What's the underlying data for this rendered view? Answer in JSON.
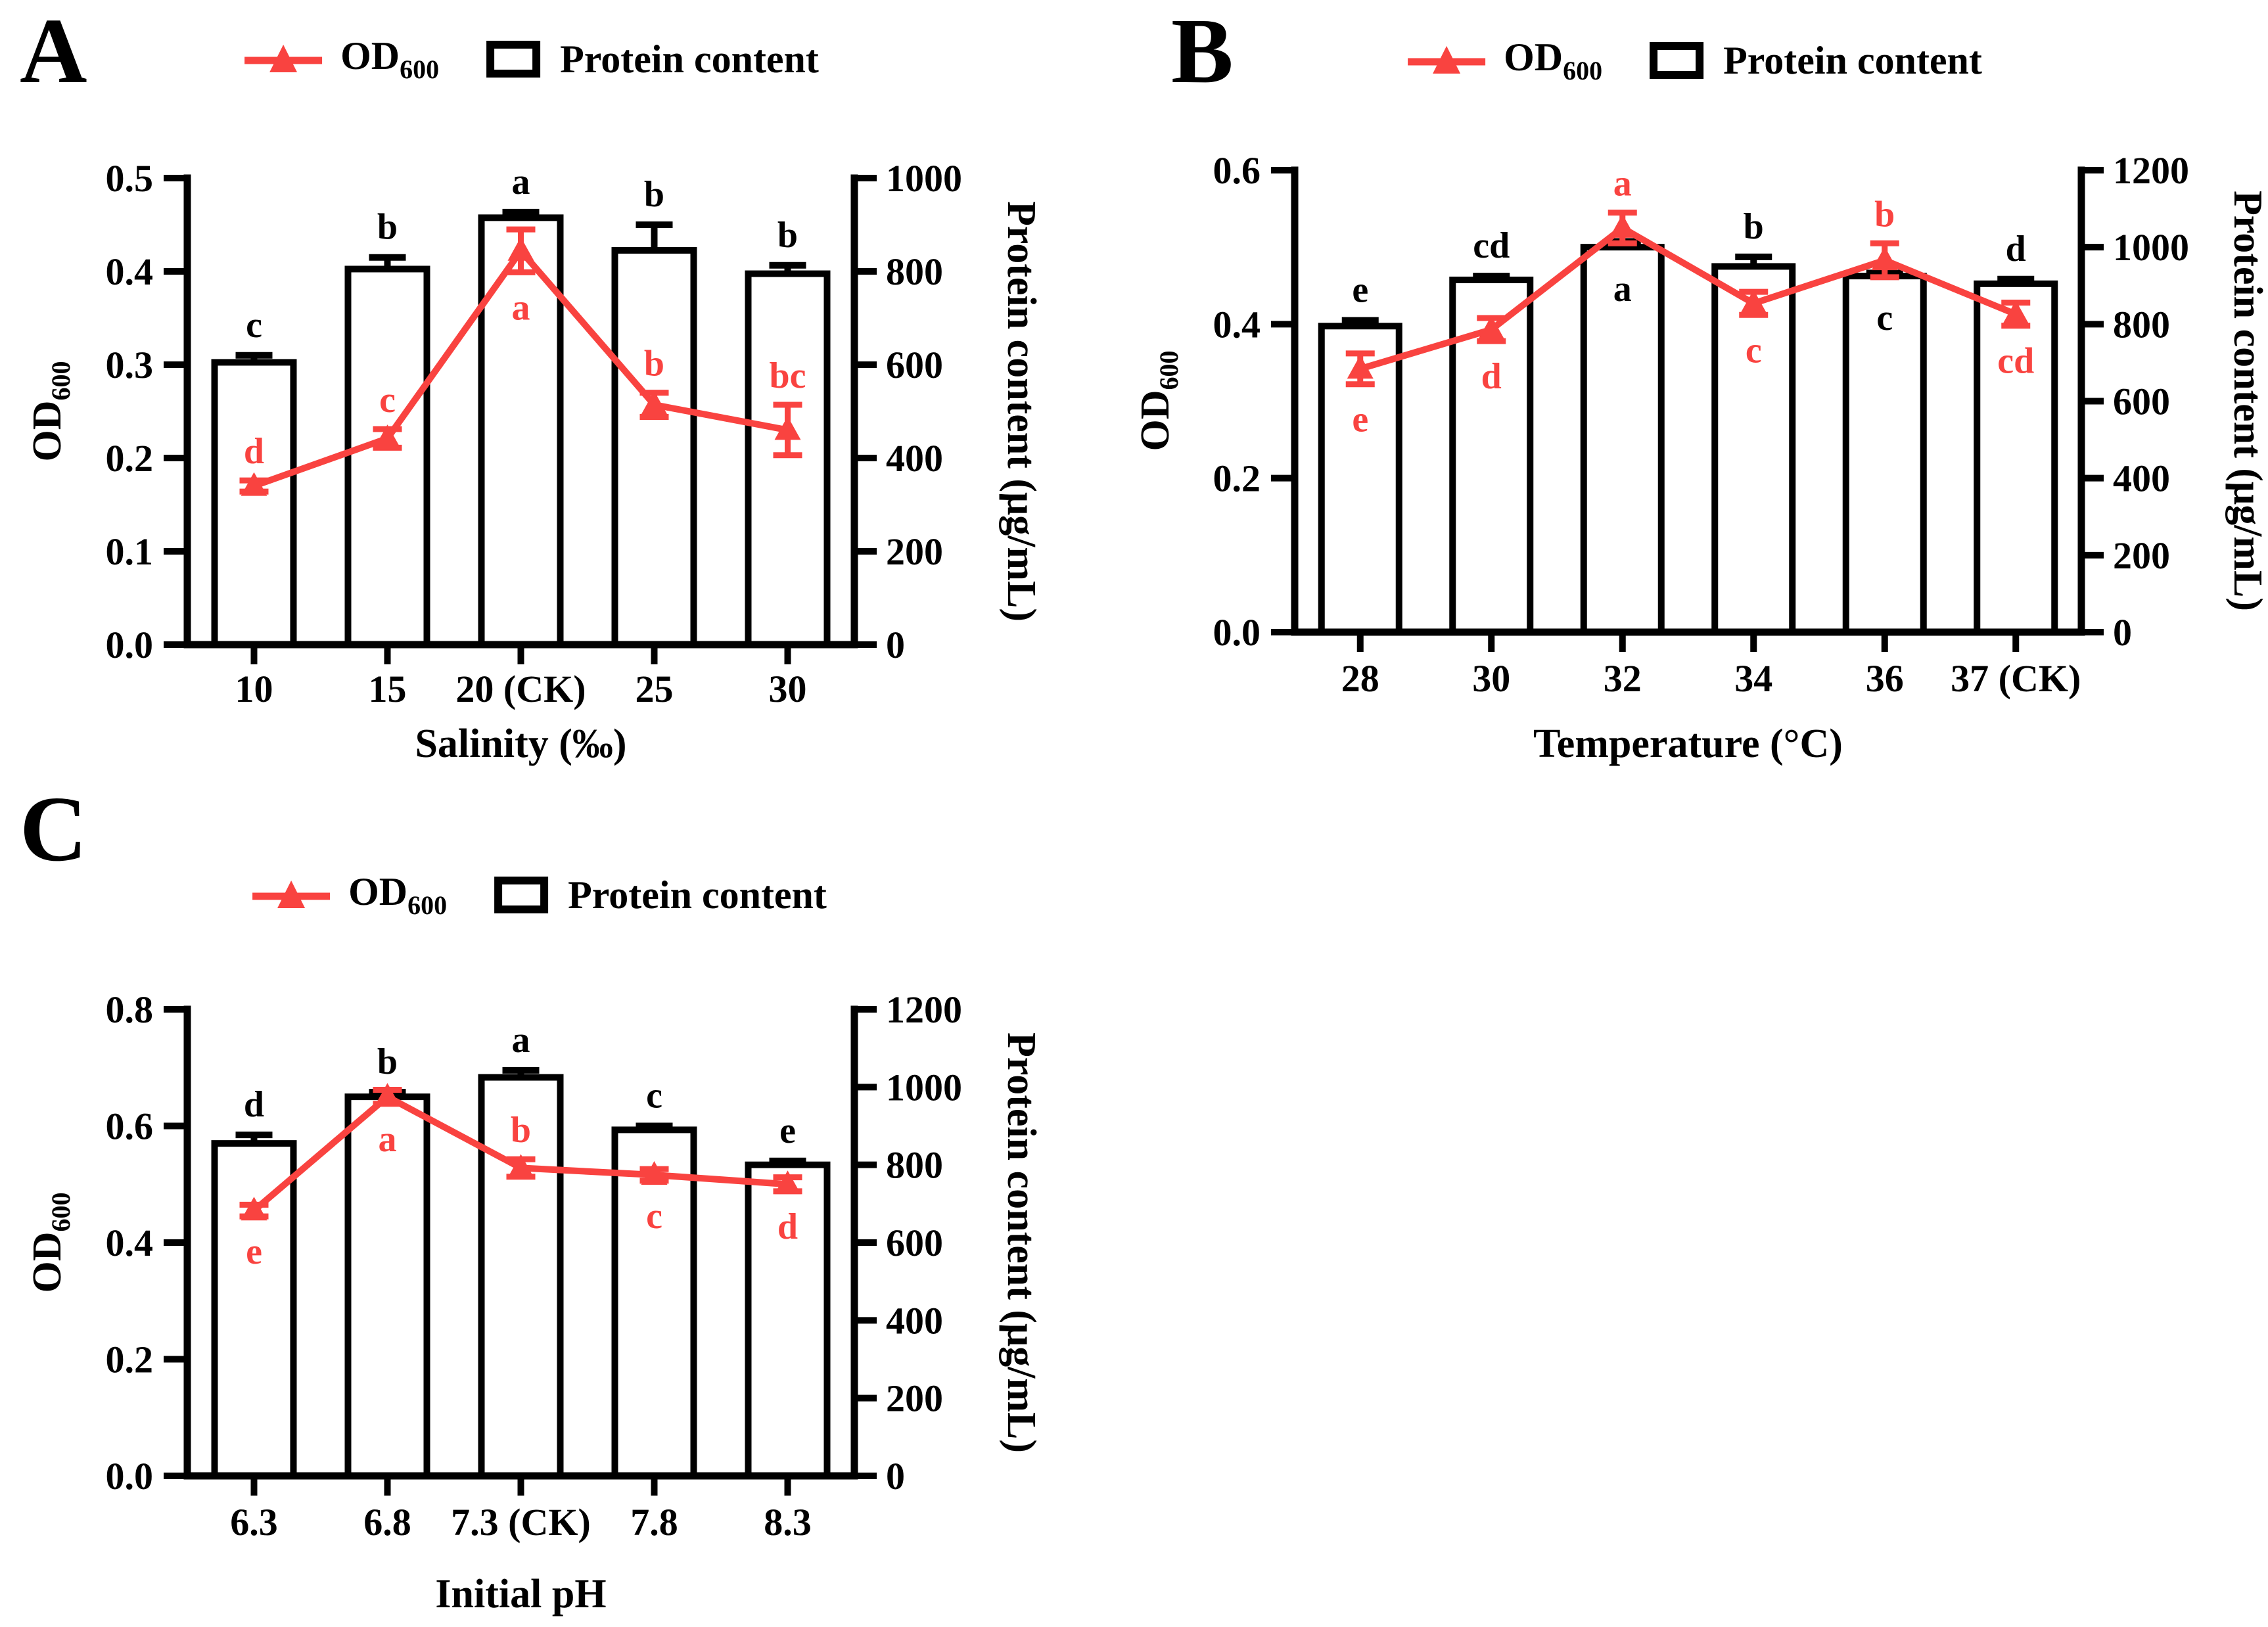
{
  "colors": {
    "red": "#F94340",
    "black": "#000000",
    "bar_fill": "#FFFFFF",
    "background": "#FFFFFF"
  },
  "legend": {
    "od_main": "OD",
    "od_sub": "600",
    "protein_label": "Protein content"
  },
  "chart_data": [
    {
      "type": "bar+line",
      "panel_letter": "A",
      "x_title": "Salinity (‰)",
      "categories": [
        "10",
        "15",
        "20 (CK)",
        "25",
        "30"
      ],
      "left_axis": {
        "label_main": "OD",
        "label_sub": "600",
        "min": 0,
        "max": 0.5,
        "tick_values": [
          0,
          0.1,
          0.2,
          0.3,
          0.4,
          0.5
        ],
        "tick_labels": [
          "0.0",
          "0.1",
          "0.2",
          "0.3",
          "0.4",
          "0.5"
        ]
      },
      "right_axis": {
        "label": "Protein content (μg/mL)",
        "min": 0,
        "max": 1000,
        "tick_values": [
          0,
          200,
          400,
          600,
          800,
          1000
        ],
        "tick_labels": [
          "0",
          "200",
          "400",
          "600",
          "800",
          "1000"
        ]
      },
      "series": [
        {
          "name": "Protein content",
          "type": "bar",
          "axis": "right",
          "values": [
            605,
            805,
            915,
            845,
            795
          ],
          "errors": [
            15,
            25,
            12,
            55,
            18
          ],
          "sig_letters": [
            "c",
            "b",
            "a",
            "b",
            "b"
          ],
          "sig_positions": [
            "above",
            "above",
            "above",
            "above",
            "above"
          ]
        },
        {
          "name": "OD600",
          "type": "line",
          "axis": "left",
          "values": [
            0.17,
            0.221,
            0.422,
            0.257,
            0.23
          ],
          "errors": [
            0.006,
            0.01,
            0.023,
            0.013,
            0.027
          ],
          "sig_letters": [
            "d",
            "c",
            "a",
            "b",
            "bc"
          ],
          "sig_positions": [
            "above",
            "above",
            "below",
            "above",
            "above"
          ]
        }
      ]
    },
    {
      "type": "bar+line",
      "panel_letter": "B",
      "x_title": "Temperature (°C)",
      "categories": [
        "28",
        "30",
        "32",
        "34",
        "36",
        "37 (CK)"
      ],
      "left_axis": {
        "label_main": "OD",
        "label_sub": "600",
        "min": 0,
        "max": 0.6,
        "tick_values": [
          0,
          0.2,
          0.4,
          0.6
        ],
        "tick_labels": [
          "0.0",
          "0.2",
          "0.4",
          "0.6"
        ]
      },
      "right_axis": {
        "label": "Protein content (μg/mL)",
        "min": 0,
        "max": 1200,
        "tick_values": [
          0,
          200,
          400,
          600,
          800,
          1000,
          1200
        ],
        "tick_labels": [
          "0",
          "200",
          "400",
          "600",
          "800",
          "1000",
          "1200"
        ]
      },
      "series": [
        {
          "name": "Protein content",
          "type": "bar",
          "axis": "right",
          "values": [
            795,
            915,
            1000,
            950,
            925,
            905
          ],
          "errors": [
            15,
            10,
            15,
            25,
            8,
            12
          ],
          "sig_letters": [
            "e",
            "cd",
            "a",
            "b",
            "c",
            "d"
          ],
          "sig_positions": [
            "above",
            "above",
            "inside",
            "above",
            "inside",
            "above"
          ]
        },
        {
          "name": "OD600",
          "type": "line",
          "axis": "left",
          "values": [
            0.342,
            0.393,
            0.525,
            0.427,
            0.483,
            0.413
          ],
          "errors": [
            0.02,
            0.015,
            0.02,
            0.015,
            0.022,
            0.015
          ],
          "sig_letters": [
            "e",
            "d",
            "a",
            "c",
            "b",
            "cd"
          ],
          "sig_positions": [
            "below",
            "below",
            "above",
            "below",
            "above",
            "below"
          ]
        }
      ]
    },
    {
      "type": "bar+line",
      "panel_letter": "C",
      "x_title": "Initial pH",
      "categories": [
        "6.3",
        "6.8",
        "7.3 (CK)",
        "7.8",
        "8.3"
      ],
      "left_axis": {
        "label_main": "OD",
        "label_sub": "600",
        "min": 0,
        "max": 0.8,
        "tick_values": [
          0,
          0.2,
          0.4,
          0.6,
          0.8
        ],
        "tick_labels": [
          "0.0",
          "0.2",
          "0.4",
          "0.6",
          "0.8"
        ]
      },
      "right_axis": {
        "label": "Protein content (μg/mL)",
        "min": 0,
        "max": 1200,
        "tick_values": [
          0,
          200,
          400,
          600,
          800,
          1000,
          1200
        ],
        "tick_labels": [
          "0",
          "200",
          "400",
          "600",
          "800",
          "1000",
          "1200"
        ]
      },
      "series": [
        {
          "name": "Protein content",
          "type": "bar",
          "axis": "right",
          "values": [
            855,
            975,
            1025,
            890,
            800
          ],
          "errors": [
            22,
            12,
            18,
            10,
            10
          ],
          "sig_letters": [
            "d",
            "b",
            "a",
            "c",
            "e"
          ],
          "sig_positions": [
            "above",
            "above",
            "above",
            "above",
            "above"
          ]
        },
        {
          "name": "OD600",
          "type": "line",
          "axis": "left",
          "values": [
            0.455,
            0.65,
            0.528,
            0.516,
            0.5
          ],
          "errors": [
            0.01,
            0.012,
            0.015,
            0.01,
            0.012
          ],
          "sig_letters": [
            "e",
            "a",
            "b",
            "c",
            "d"
          ],
          "sig_positions": [
            "below",
            "below",
            "above",
            "below",
            "below"
          ]
        }
      ]
    }
  ]
}
